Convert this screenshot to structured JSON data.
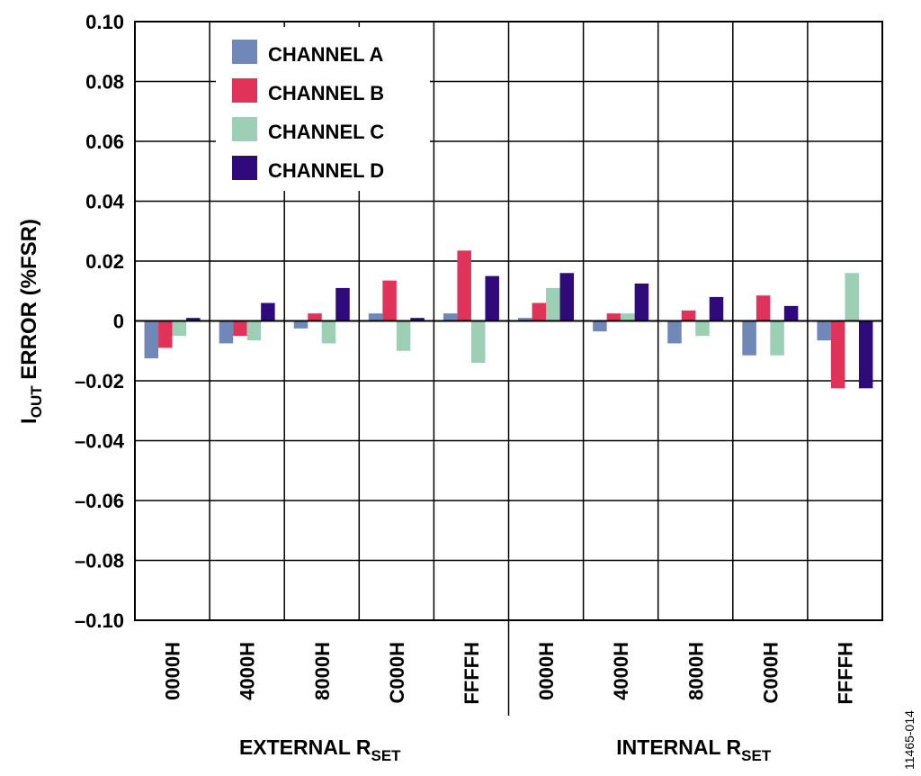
{
  "chart_data": {
    "type": "bar",
    "ylabel": {
      "main": "I",
      "sub": "OUT",
      "rest": " ERROR (%FSR)"
    },
    "ylim": [
      -0.1,
      0.1
    ],
    "yticks": [
      0.1,
      0.08,
      0.06,
      0.04,
      0.02,
      0,
      -0.02,
      -0.04,
      -0.06,
      -0.08,
      -0.1
    ],
    "ytick_labels": [
      "0.10",
      "0.08",
      "0.06",
      "0.04",
      "0.02",
      "0",
      "–0.02",
      "–0.04",
      "–0.06",
      "–0.08",
      "–0.10"
    ],
    "grid": true,
    "legend_position": "top-left",
    "groups": [
      {
        "main": "EXTERNAL R",
        "sub": "SET"
      },
      {
        "main": "INTERNAL R",
        "sub": "SET"
      }
    ],
    "categories": [
      "0000H",
      "4000H",
      "8000H",
      "C000H",
      "FFFFH",
      "0000H",
      "4000H",
      "8000H",
      "C000H",
      "FFFFH"
    ],
    "series": [
      {
        "name": "CHANNEL A",
        "color": "#6f88b8",
        "values": [
          -0.0125,
          -0.0075,
          -0.0025,
          0.0025,
          0.0025,
          0.001,
          -0.0035,
          -0.0075,
          -0.0115,
          -0.0065
        ]
      },
      {
        "name": "CHANNEL B",
        "color": "#e0335a",
        "values": [
          -0.009,
          -0.005,
          0.0025,
          0.0135,
          0.0235,
          0.006,
          0.0025,
          0.0035,
          0.0085,
          -0.0225
        ]
      },
      {
        "name": "CHANNEL C",
        "color": "#9ccfb5",
        "values": [
          -0.005,
          -0.0065,
          -0.0075,
          -0.01,
          -0.014,
          0.011,
          0.0025,
          -0.005,
          -0.0115,
          0.016
        ]
      },
      {
        "name": "CHANNEL D",
        "color": "#2f0a7a",
        "values": [
          0.001,
          0.006,
          0.011,
          0.001,
          0.015,
          0.016,
          0.0125,
          0.008,
          0.005,
          -0.0225
        ]
      }
    ]
  },
  "figure_id": "11465-014"
}
